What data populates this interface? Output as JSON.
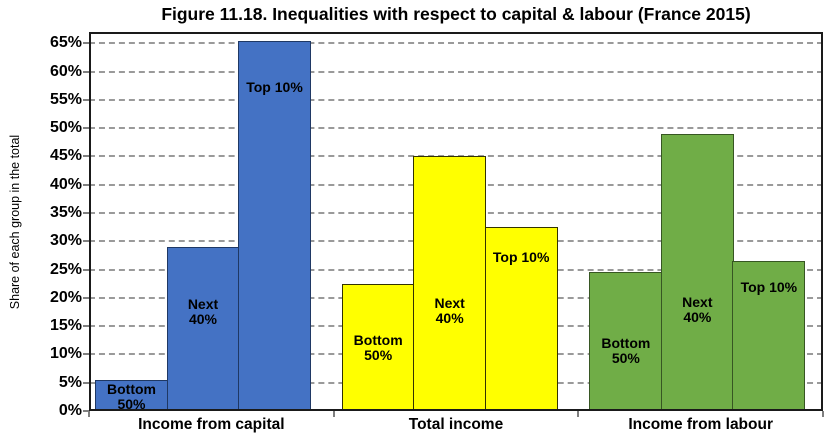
{
  "chart_data": {
    "type": "bar",
    "title": "Figure 11.18. Inequalities with respect to capital & labour (France 2015)",
    "ylabel": "Share of each group in the total",
    "xlabel": "",
    "ylim": [
      0,
      67
    ],
    "ytick_step": 5,
    "ytick_labels": [
      "0%",
      "5%",
      "10%",
      "15%",
      "20%",
      "25%",
      "30%",
      "35%",
      "40%",
      "45%",
      "50%",
      "55%",
      "60%",
      "65%"
    ],
    "grid": "horizontal-dashed",
    "legend_position": "none",
    "categories": [
      "Income from capital",
      "Total income",
      "Income from labour"
    ],
    "series": [
      {
        "name": "Bottom 50%",
        "values": [
          5.5,
          22.5,
          24.5
        ]
      },
      {
        "name": "Next 40%",
        "values": [
          29,
          45,
          49
        ]
      },
      {
        "name": "Top 10%",
        "values": [
          65.5,
          32.5,
          26.5
        ]
      }
    ],
    "groups": [
      {
        "category": "Income from capital",
        "fill": "#4472C4",
        "border": "#1F3864",
        "bars": [
          {
            "name": "Bottom 50%",
            "label_lines": [
              "Bottom",
              "50%"
            ],
            "value": 5.5
          },
          {
            "name": "Next 40%",
            "label_lines": [
              "Next",
              "40%"
            ],
            "value": 29
          },
          {
            "name": "Top 10%",
            "label_lines": [
              "Top 10%"
            ],
            "value": 65.5
          }
        ]
      },
      {
        "category": "Total income",
        "fill": "#FFFF00",
        "border": "#333300",
        "bars": [
          {
            "name": "Bottom 50%",
            "label_lines": [
              "Bottom",
              "50%"
            ],
            "value": 22.5
          },
          {
            "name": "Next 40%",
            "label_lines": [
              "Next",
              "40%"
            ],
            "value": 45
          },
          {
            "name": "Top 10%",
            "label_lines": [
              "Top 10%"
            ],
            "value": 32.5
          }
        ]
      },
      {
        "category": "Income from labour",
        "fill": "#70AD47",
        "border": "#375623",
        "bars": [
          {
            "name": "Bottom 50%",
            "label_lines": [
              "Bottom",
              "50%"
            ],
            "value": 24.5
          },
          {
            "name": "Next 40%",
            "label_lines": [
              "Next",
              "40%"
            ],
            "value": 49
          },
          {
            "name": "Top 10%",
            "label_lines": [
              "Top 10%"
            ],
            "value": 26.5
          }
        ]
      }
    ],
    "colors": {
      "income_from_capital": "#4472C4",
      "total_income": "#FFFF00",
      "income_from_labour": "#70AD47",
      "gridline": "#9a9a9a",
      "axis": "#1a1a1a"
    }
  }
}
